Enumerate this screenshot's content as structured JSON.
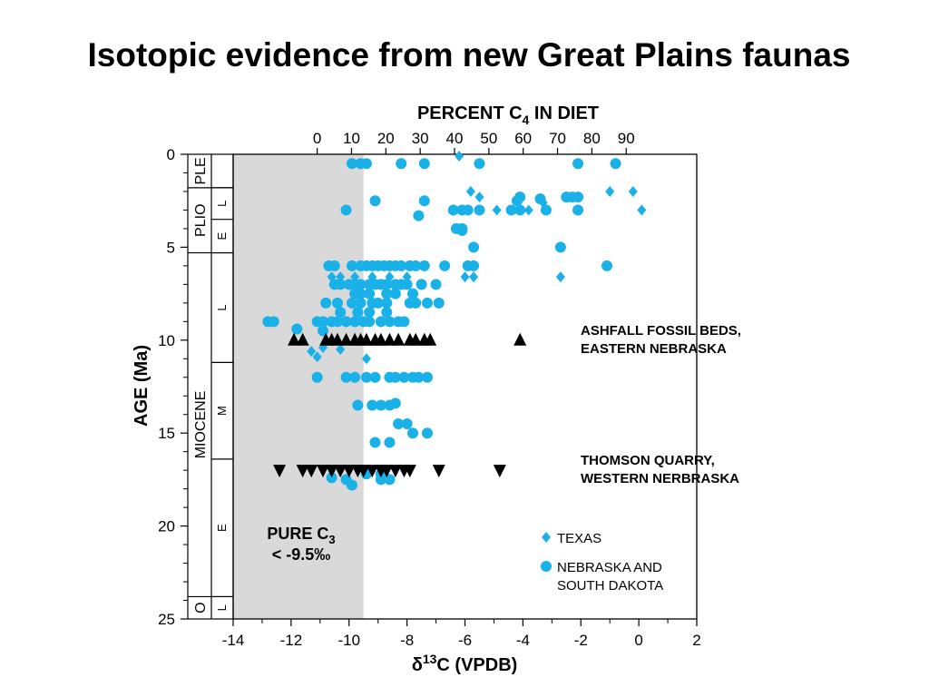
{
  "slide": {
    "title": "Isotopic evidence from new Great Plains faunas"
  },
  "colors": {
    "texas": "#1ab0e8",
    "nebraska": "#1ab0e8",
    "ashfall": "#000000",
    "thomson": "#000000",
    "c3_shade": "#d9d9d9"
  },
  "chart_data": {
    "type": "scatter",
    "x_label": "δ13C (VPDB)",
    "x_label_parts": {
      "pre": "δ",
      "sup": "13",
      "post": "C  (VPDB)"
    },
    "x_ticks": [
      -14,
      -12,
      -10,
      -8,
      -6,
      -4,
      -2,
      0,
      2
    ],
    "xlim": [
      -14,
      2
    ],
    "top_label": "PERCENT C4 IN DIET",
    "top_label_parts": {
      "pre": "PERCENT  C",
      "sub": "4",
      "post": "  IN DIET"
    },
    "top_ticks": [
      0,
      10,
      20,
      30,
      40,
      50,
      60,
      70,
      80,
      90
    ],
    "y_label": "AGE  (Ma)",
    "y_ticks": [
      0,
      5,
      10,
      15,
      20,
      25
    ],
    "ylim": [
      0,
      25
    ],
    "y_inverted": true,
    "shaded_region": {
      "x_from": -14,
      "x_to": -9.5,
      "label_line1_pre": "PURE  C",
      "label_line1_sub": "3",
      "label_line2": "< -9.5‰"
    },
    "epochs": [
      {
        "name": "PLE",
        "from": 0,
        "to": 1.8
      },
      {
        "name": "PLIO",
        "from": 1.8,
        "to": 5.3
      },
      {
        "name": "MIOCENE",
        "from": 5.3,
        "to": 23.8
      },
      {
        "name": "O",
        "from": 23.8,
        "to": 25
      }
    ],
    "subepochs": [
      {
        "name": "L",
        "from": 1.8,
        "to": 3.5
      },
      {
        "name": "E",
        "from": 3.5,
        "to": 5.3
      },
      {
        "name": "L",
        "from": 5.3,
        "to": 11.2
      },
      {
        "name": "M",
        "from": 11.2,
        "to": 16.4
      },
      {
        "name": "E",
        "from": 16.4,
        "to": 23.8
      },
      {
        "name": "L",
        "from": 23.8,
        "to": 25
      }
    ],
    "annotations": [
      {
        "lines": [
          "ASHFALL FOSSIL BEDS,",
          "EASTERN  NEBRASKA"
        ],
        "x": 0.1,
        "y": 10
      },
      {
        "lines": [
          "THOMSON QUARRY,",
          "WESTERN  NERBRASKA"
        ],
        "x": 0.1,
        "y": 17
      }
    ],
    "legend": {
      "position": "lower-right",
      "items": [
        {
          "marker": "diamond",
          "lines": [
            "TEXAS"
          ]
        },
        {
          "marker": "circle",
          "lines": [
            "NEBRASKA AND",
            "SOUTH  DAKOTA"
          ]
        }
      ]
    },
    "series": [
      {
        "name": "TEXAS",
        "marker": "diamond",
        "points": [
          [
            -6.2,
            0.1
          ],
          [
            -5.8,
            2
          ],
          [
            -5.5,
            2.3
          ],
          [
            -4.9,
            3
          ],
          [
            -4.2,
            2.4
          ],
          [
            -3.8,
            3
          ],
          [
            -3.3,
            2.6
          ],
          [
            -1,
            2
          ],
          [
            -0.2,
            2
          ],
          [
            0.1,
            3
          ],
          [
            -10.6,
            6.6
          ],
          [
            -10.3,
            6.6
          ],
          [
            -9.8,
            6.6
          ],
          [
            -9.2,
            6.6
          ],
          [
            -8.6,
            6.6
          ],
          [
            -8,
            6.6
          ],
          [
            -6,
            6.6
          ],
          [
            -5.7,
            6.6
          ],
          [
            -2.7,
            6.6
          ],
          [
            -11.3,
            10.6
          ],
          [
            -11.1,
            10.9
          ],
          [
            -10.9,
            10.4
          ],
          [
            -10.3,
            10.5
          ],
          [
            -9.4,
            11
          ]
        ]
      },
      {
        "name": "NEBRASKA AND SOUTH DAKOTA",
        "marker": "circle",
        "points": [
          [
            -9.9,
            0.5
          ],
          [
            -9.6,
            0.5
          ],
          [
            -9.4,
            0.5
          ],
          [
            -8.2,
            0.5
          ],
          [
            -7.4,
            0.5
          ],
          [
            -5.5,
            0.5
          ],
          [
            -2.1,
            0.5
          ],
          [
            -0.8,
            0.5
          ],
          [
            -10.1,
            3
          ],
          [
            -9.1,
            2.5
          ],
          [
            -7.6,
            3.3
          ],
          [
            -7.4,
            2.5
          ],
          [
            -6.4,
            3
          ],
          [
            -6.1,
            3
          ],
          [
            -5.9,
            3
          ],
          [
            -5.5,
            3
          ],
          [
            -6.1,
            4
          ],
          [
            -6.3,
            4
          ],
          [
            -6.1,
            4.1
          ],
          [
            -4.2,
            2.5
          ],
          [
            -4.1,
            2.3
          ],
          [
            -4.4,
            3
          ],
          [
            -4.1,
            3
          ],
          [
            -3.4,
            2.4
          ],
          [
            -3.2,
            3
          ],
          [
            -2.5,
            2.3
          ],
          [
            -2.3,
            2.3
          ],
          [
            -2.1,
            2.3
          ],
          [
            -2.1,
            3
          ],
          [
            -5.7,
            5
          ],
          [
            -2.7,
            5
          ],
          [
            -1.1,
            6
          ],
          [
            -10.7,
            6
          ],
          [
            -10.5,
            6
          ],
          [
            -9.9,
            6
          ],
          [
            -9.6,
            6
          ],
          [
            -9.4,
            6
          ],
          [
            -9.2,
            6
          ],
          [
            -9,
            6
          ],
          [
            -8.8,
            6
          ],
          [
            -8.6,
            6
          ],
          [
            -8.4,
            6
          ],
          [
            -8.2,
            6
          ],
          [
            -7.9,
            6
          ],
          [
            -7.7,
            6
          ],
          [
            -7.4,
            6
          ],
          [
            -6.7,
            6
          ],
          [
            -5.9,
            6
          ],
          [
            -5.7,
            6
          ],
          [
            -10.5,
            7
          ],
          [
            -10.3,
            7
          ],
          [
            -10,
            7
          ],
          [
            -9.8,
            7
          ],
          [
            -9.6,
            7
          ],
          [
            -9.3,
            7
          ],
          [
            -9.1,
            7
          ],
          [
            -8.9,
            7
          ],
          [
            -8.7,
            7
          ],
          [
            -8.4,
            7
          ],
          [
            -8.2,
            7
          ],
          [
            -8,
            7
          ],
          [
            -7.5,
            7
          ],
          [
            -7,
            7
          ],
          [
            -9.8,
            7.5
          ],
          [
            -9.6,
            7.5
          ],
          [
            -9.3,
            7.5
          ],
          [
            -8.7,
            7.5
          ],
          [
            -8.4,
            7.5
          ],
          [
            -7.8,
            7.5
          ],
          [
            -10.8,
            8
          ],
          [
            -10.4,
            8
          ],
          [
            -9.9,
            8
          ],
          [
            -9.6,
            8
          ],
          [
            -9.2,
            8
          ],
          [
            -9,
            8
          ],
          [
            -8.7,
            8
          ],
          [
            -7.9,
            8
          ],
          [
            -7.7,
            8
          ],
          [
            -7.3,
            8
          ],
          [
            -6.9,
            8
          ],
          [
            -10.3,
            8.5
          ],
          [
            -9.7,
            8.5
          ],
          [
            -9.3,
            8.5
          ],
          [
            -8.7,
            8.5
          ],
          [
            -12.8,
            9
          ],
          [
            -12.6,
            9
          ],
          [
            -11.1,
            9
          ],
          [
            -10.9,
            9
          ],
          [
            -10.6,
            9
          ],
          [
            -10.4,
            9
          ],
          [
            -10.1,
            9
          ],
          [
            -9.8,
            9
          ],
          [
            -9.5,
            9
          ],
          [
            -9.3,
            9
          ],
          [
            -8.9,
            9
          ],
          [
            -8.6,
            9
          ],
          [
            -8.3,
            9
          ],
          [
            -8.1,
            9
          ],
          [
            -11.8,
            9.4
          ],
          [
            -10.9,
            9.5
          ],
          [
            -11.1,
            12
          ],
          [
            -10.1,
            12
          ],
          [
            -9.8,
            12
          ],
          [
            -9.4,
            12
          ],
          [
            -9.1,
            12
          ],
          [
            -8.6,
            12
          ],
          [
            -8.4,
            12
          ],
          [
            -8.1,
            12
          ],
          [
            -7.8,
            12
          ],
          [
            -7.6,
            12
          ],
          [
            -7.3,
            12
          ],
          [
            -9.7,
            13.5
          ],
          [
            -9.2,
            13.5
          ],
          [
            -8.9,
            13.5
          ],
          [
            -8.6,
            13.5
          ],
          [
            -8.4,
            13.4
          ],
          [
            -8.3,
            14.5
          ],
          [
            -8,
            14.5
          ],
          [
            -9.1,
            15.5
          ],
          [
            -8.6,
            15.5
          ],
          [
            -7.3,
            15
          ],
          [
            -7.8,
            15
          ],
          [
            -10.6,
            17.4
          ],
          [
            -10.1,
            17.5
          ],
          [
            -9.9,
            17.8
          ],
          [
            -9.4,
            17.2
          ],
          [
            -8.9,
            17.2
          ],
          [
            -8.6,
            17.5
          ],
          [
            -8.9,
            17.5
          ]
        ]
      },
      {
        "name": "Ashfall Fossil Beds",
        "marker": "triangle-up",
        "points": [
          [
            -11.9,
            10
          ],
          [
            -11.6,
            10
          ],
          [
            -10.8,
            10
          ],
          [
            -10.6,
            10
          ],
          [
            -10.4,
            10
          ],
          [
            -10.1,
            10
          ],
          [
            -9.8,
            10
          ],
          [
            -9.6,
            10
          ],
          [
            -9.4,
            10
          ],
          [
            -9.1,
            10
          ],
          [
            -8.9,
            10
          ],
          [
            -8.6,
            10
          ],
          [
            -8.3,
            10
          ],
          [
            -7.9,
            10
          ],
          [
            -7.7,
            10
          ],
          [
            -7.4,
            10
          ],
          [
            -7.2,
            10
          ],
          [
            -4.1,
            10
          ]
        ]
      },
      {
        "name": "Thomson Quarry",
        "marker": "triangle-down",
        "points": [
          [
            -12.4,
            17
          ],
          [
            -11.6,
            17
          ],
          [
            -11.3,
            17
          ],
          [
            -10.9,
            17
          ],
          [
            -10.6,
            17
          ],
          [
            -10.3,
            17
          ],
          [
            -10,
            17
          ],
          [
            -9.7,
            17
          ],
          [
            -9.5,
            17
          ],
          [
            -9.2,
            17
          ],
          [
            -8.9,
            17
          ],
          [
            -8.7,
            17
          ],
          [
            -8.4,
            17
          ],
          [
            -8.1,
            17
          ],
          [
            -7.9,
            17
          ],
          [
            -6.9,
            17
          ],
          [
            -4.8,
            17
          ]
        ]
      }
    ]
  }
}
